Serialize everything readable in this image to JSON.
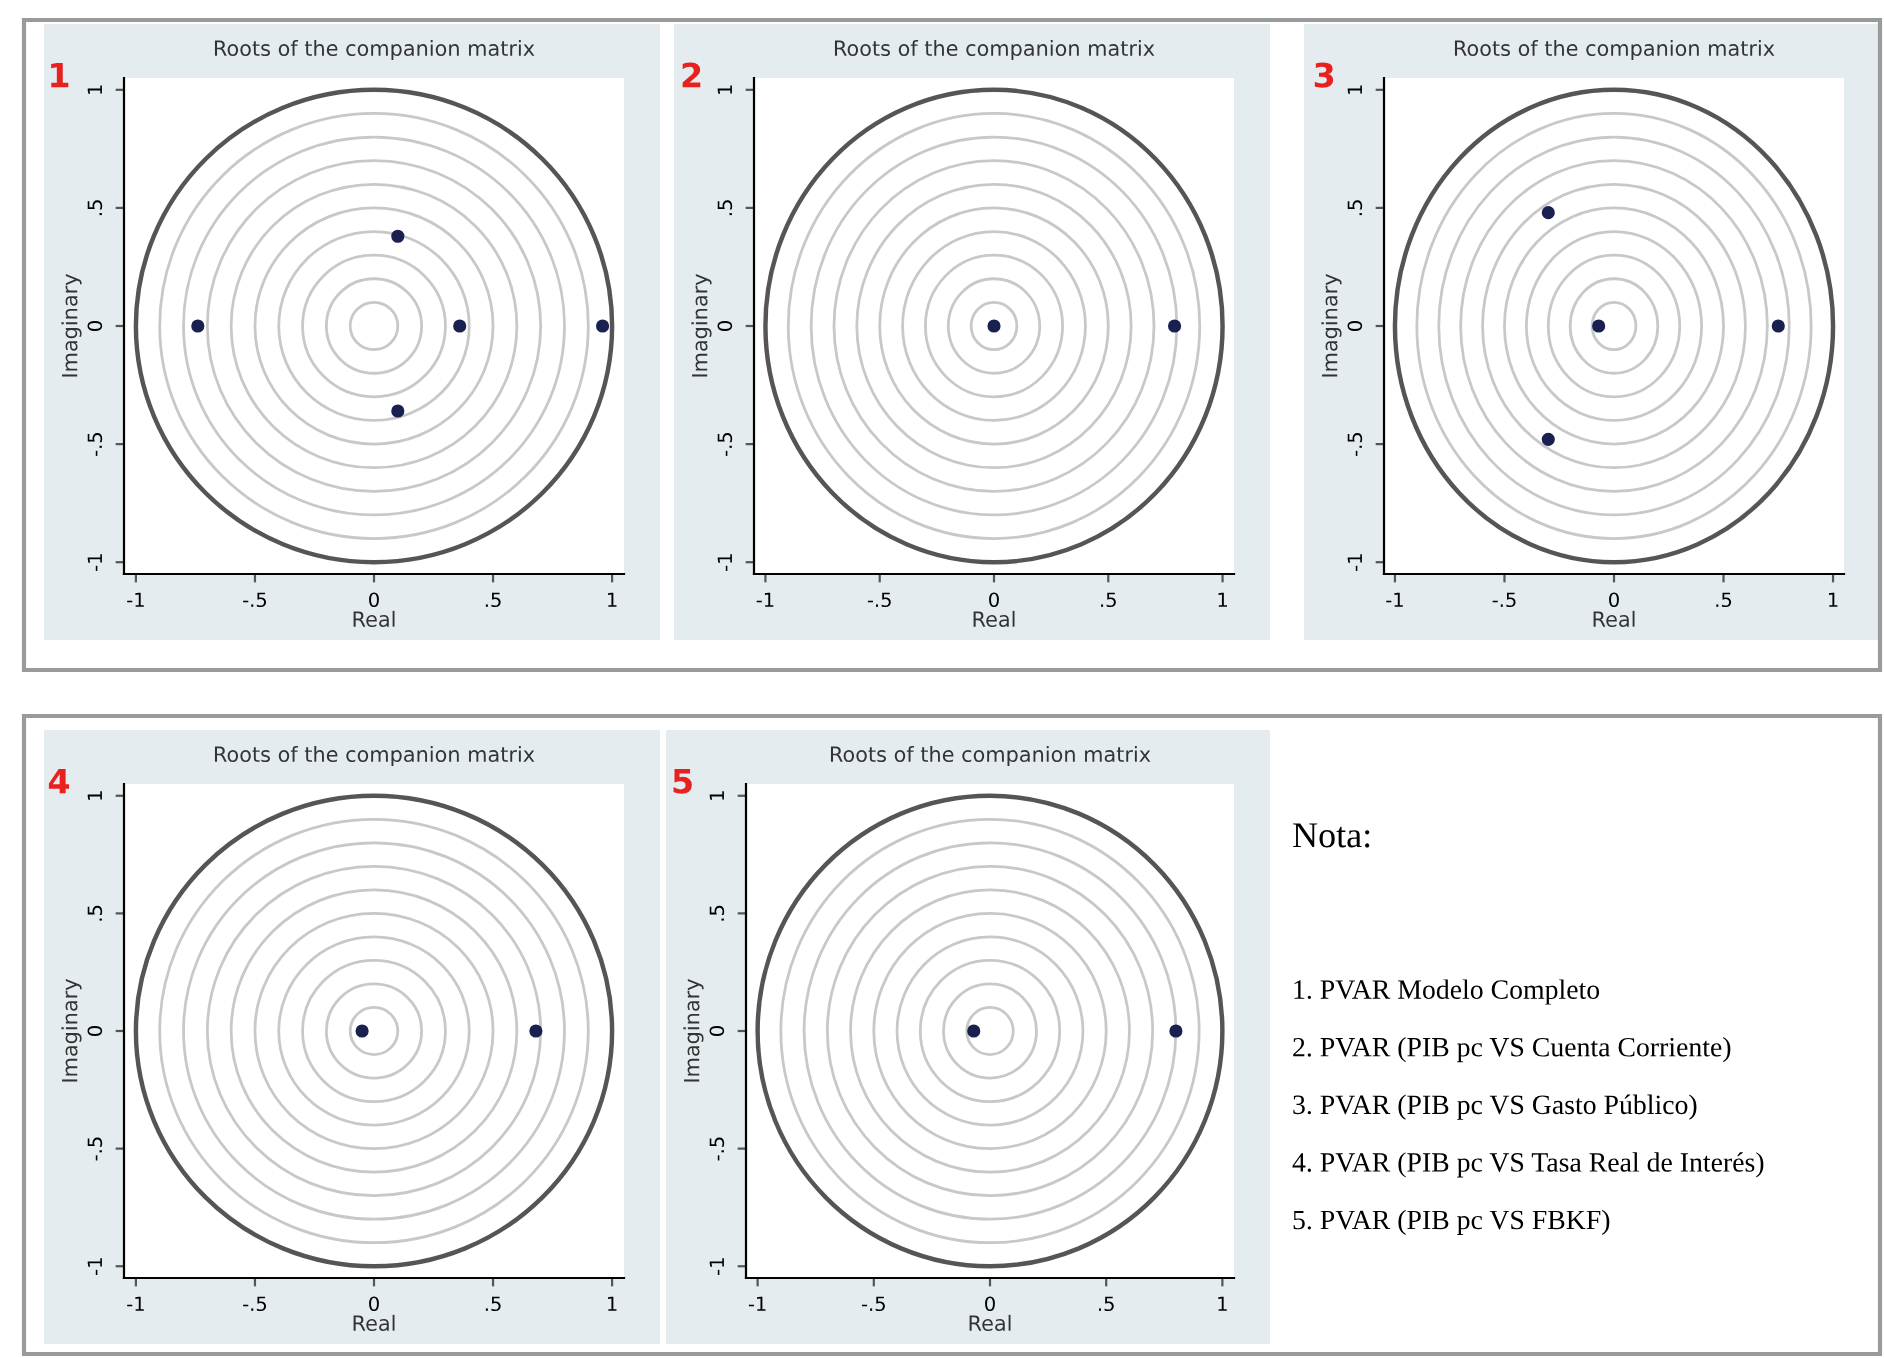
{
  "chart_data": [
    {
      "type": "scatter",
      "title": "Roots of the companion matrix",
      "xlabel": "Real",
      "ylabel": "Imaginary",
      "annotations": [
        "1"
      ],
      "x": [
        -0.74,
        0.1,
        0.36,
        0.96,
        0.1
      ],
      "values": [
        0,
        0.38,
        0,
        0,
        -0.36
      ],
      "color": "#1a2050",
      "marker": "circle",
      "xlim": [
        -1.05,
        1.05
      ],
      "ylim": [
        -1.05,
        1.05
      ],
      "xticks": [
        {
          "value": -1,
          "label": "-1"
        },
        {
          "value": -0.5,
          "label": "-.5"
        },
        0,
        {
          "value": 0.5,
          "label": ".5"
        },
        1
      ],
      "yticks": [
        {
          "value": -1,
          "label": "-1"
        },
        {
          "value": -0.5,
          "label": "-.5"
        },
        0,
        {
          "value": 0.5,
          "label": ".5"
        },
        1
      ]
    },
    {
      "type": "scatter",
      "title": "Roots of the companion matrix",
      "xlabel": "Real",
      "ylabel": "Imaginary",
      "annotations": [
        "2"
      ],
      "x": [
        0,
        0.79
      ],
      "values": [
        0,
        0
      ],
      "color": "#1a2050",
      "marker": "circle",
      "xlim": [
        -1.05,
        1.05
      ],
      "ylim": [
        -1.05,
        1.05
      ],
      "xticks": [
        {
          "value": -1,
          "label": "-1"
        },
        {
          "value": -0.5,
          "label": "-.5"
        },
        0,
        {
          "value": 0.5,
          "label": ".5"
        },
        1
      ],
      "yticks": [
        {
          "value": -1,
          "label": "-1"
        },
        {
          "value": -0.5,
          "label": "-.5"
        },
        0,
        {
          "value": 0.5,
          "label": ".5"
        },
        1
      ]
    },
    {
      "type": "scatter",
      "title": "Roots of the companion matrix",
      "xlabel": "Real",
      "ylabel": "Imaginary",
      "annotations": [
        "3"
      ],
      "x": [
        -0.3,
        -0.3,
        -0.07,
        0.75
      ],
      "values": [
        0.48,
        -0.48,
        0,
        0
      ],
      "color": "#1a2050",
      "marker": "circle",
      "xlim": [
        -1.05,
        1.05
      ],
      "ylim": [
        -1.05,
        1.05
      ],
      "xticks": [
        {
          "value": -1,
          "label": "-1"
        },
        {
          "value": -0.5,
          "label": "-.5"
        },
        0,
        {
          "value": 0.5,
          "label": ".5"
        },
        1
      ],
      "yticks": [
        {
          "value": -1,
          "label": "-1"
        },
        {
          "value": -0.5,
          "label": "-.5"
        },
        0,
        {
          "value": 0.5,
          "label": ".5"
        },
        1
      ]
    },
    {
      "type": "scatter",
      "title": "Roots of the companion matrix",
      "xlabel": "Real",
      "ylabel": "Imaginary",
      "annotations": [
        "4"
      ],
      "x": [
        -0.05,
        0.68
      ],
      "values": [
        0,
        0
      ],
      "color": "#1a2050",
      "marker": "circle",
      "xlim": [
        -1.05,
        1.05
      ],
      "ylim": [
        -1.05,
        1.05
      ],
      "xticks": [
        {
          "value": -1,
          "label": "-1"
        },
        {
          "value": -0.5,
          "label": "-.5"
        },
        0,
        {
          "value": 0.5,
          "label": ".5"
        },
        1
      ],
      "yticks": [
        {
          "value": -1,
          "label": "-1"
        },
        {
          "value": -0.5,
          "label": "-.5"
        },
        0,
        {
          "value": 0.5,
          "label": ".5"
        },
        1
      ]
    },
    {
      "type": "scatter",
      "title": "Roots of the companion matrix",
      "xlabel": "Real",
      "ylabel": "Imaginary",
      "annotations": [
        "5"
      ],
      "x": [
        -0.07,
        0.8
      ],
      "values": [
        0,
        0
      ],
      "color": "#1a2050",
      "marker": "circle",
      "xlim": [
        -1.05,
        1.05
      ],
      "ylim": [
        -1.05,
        1.05
      ],
      "xticks": [
        {
          "value": -1,
          "label": "-1"
        },
        {
          "value": -0.5,
          "label": "-.5"
        },
        0,
        {
          "value": 0.5,
          "label": ".5"
        },
        1
      ],
      "yticks": [
        {
          "value": -1,
          "label": "-1"
        },
        {
          "value": -0.5,
          "label": "-.5"
        },
        0,
        {
          "value": 0.5,
          "label": ".5"
        },
        1
      ]
    },
    {
      "type": "other",
      "title": "Nota:",
      "annotations": [
        "1. PVAR Modelo Completo",
        "2. PVAR (PIB pc VS Cuenta Corriente)",
        "3. PVAR (PIB pc VS Gasto Público)",
        "4. PVAR (PIB pc VS Tasa Real de Interés)",
        "5. PVAR (PIB pc VS FBKF)"
      ]
    }
  ]
}
